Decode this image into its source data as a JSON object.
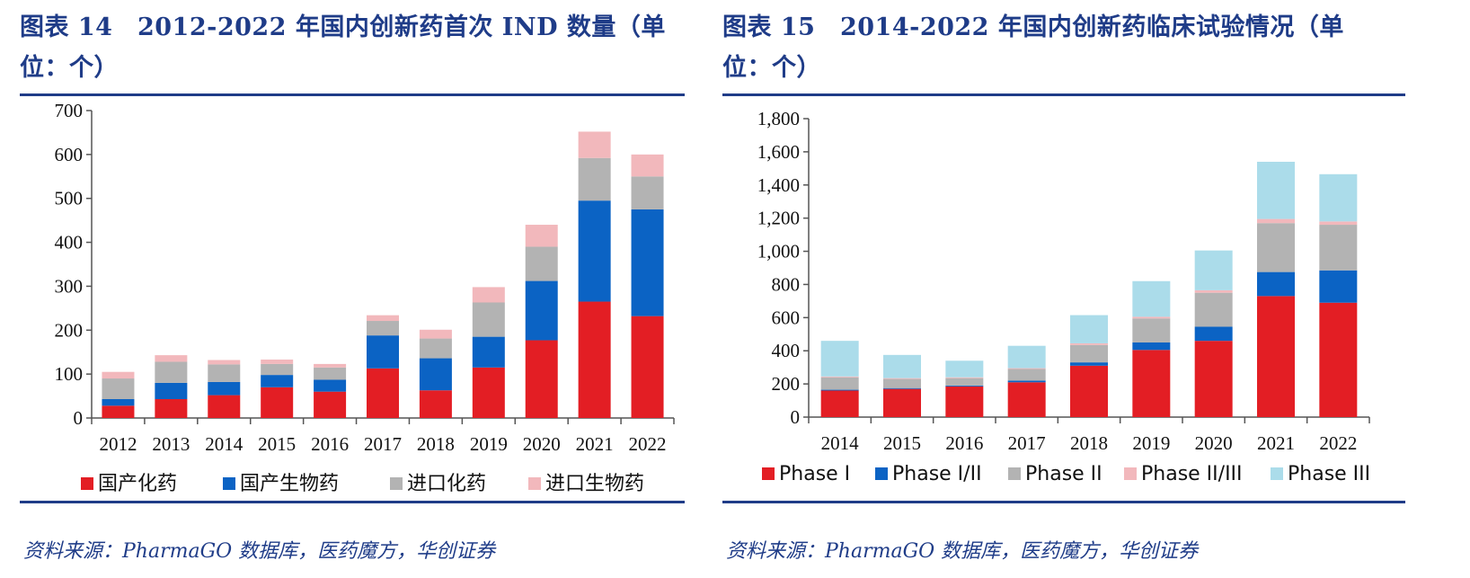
{
  "colors": {
    "title": "#1f3c88",
    "axis": "#555555",
    "series": [
      "#e31e24",
      "#0b63c4",
      "#b3b3b3",
      "#f2b8bc",
      "#abdcea"
    ]
  },
  "left": {
    "title_line1": "图表 14　2012-2022 年国内创新药首次 IND 数量（单",
    "title_line2": "位：个）",
    "source": "资料来源：PharmaGO 数据库，医药魔方，华创证券"
  },
  "right": {
    "title_line1": "图表 15　2014-2022 年国内创新药临床试验情况（单",
    "title_line2": "位：个）",
    "source": "资料来源：PharmaGO 数据库，医药魔方，华创证券"
  },
  "chart_data": [
    {
      "type": "bar",
      "stacked": true,
      "title": "2012-2022 年国内创新药首次 IND 数量（单位：个）",
      "categories": [
        "2012",
        "2013",
        "2014",
        "2015",
        "2016",
        "2017",
        "2018",
        "2019",
        "2020",
        "2021",
        "2022"
      ],
      "ylim": [
        0,
        700
      ],
      "yticks": [
        0,
        100,
        200,
        300,
        400,
        500,
        600,
        700
      ],
      "ytick_labels": [
        "0",
        "100",
        "200",
        "300",
        "400",
        "500",
        "600",
        "700"
      ],
      "series": [
        {
          "name": "国产化药",
          "values": [
            28,
            43,
            52,
            70,
            60,
            113,
            63,
            115,
            177,
            265,
            232
          ]
        },
        {
          "name": "国产生物药",
          "values": [
            15,
            37,
            30,
            28,
            27,
            75,
            73,
            70,
            135,
            230,
            243
          ]
        },
        {
          "name": "进口化药",
          "values": [
            47,
            48,
            40,
            25,
            28,
            33,
            45,
            78,
            78,
            97,
            75
          ]
        },
        {
          "name": "进口生物药",
          "values": [
            15,
            15,
            10,
            10,
            8,
            13,
            20,
            35,
            50,
            60,
            50
          ]
        }
      ],
      "legend": "bottom"
    },
    {
      "type": "bar",
      "stacked": true,
      "title": "2014-2022 年国内创新药临床试验情况（单位：个）",
      "categories": [
        "2014",
        "2015",
        "2016",
        "2017",
        "2018",
        "2019",
        "2020",
        "2021",
        "2022"
      ],
      "ylim": [
        0,
        1800
      ],
      "yticks": [
        0,
        200,
        400,
        600,
        800,
        1000,
        1200,
        1400,
        1600,
        1800
      ],
      "ytick_labels": [
        "0",
        "200",
        "400",
        "600",
        "800",
        "1,000",
        "1,200",
        "1,400",
        "1,600",
        "1,800"
      ],
      "series": [
        {
          "name": "Phase I",
          "values": [
            160,
            170,
            185,
            210,
            310,
            405,
            460,
            730,
            690
          ]
        },
        {
          "name": "Phase I/II",
          "values": [
            5,
            5,
            5,
            10,
            20,
            45,
            85,
            145,
            195
          ]
        },
        {
          "name": "Phase II",
          "values": [
            75,
            55,
            45,
            70,
            105,
            145,
            205,
            295,
            275
          ]
        },
        {
          "name": "Phase II/III",
          "values": [
            5,
            5,
            5,
            5,
            10,
            10,
            15,
            25,
            20
          ]
        },
        {
          "name": "Phase III",
          "values": [
            215,
            140,
            100,
            135,
            170,
            215,
            240,
            345,
            285
          ]
        }
      ],
      "legend": "bottom"
    }
  ]
}
